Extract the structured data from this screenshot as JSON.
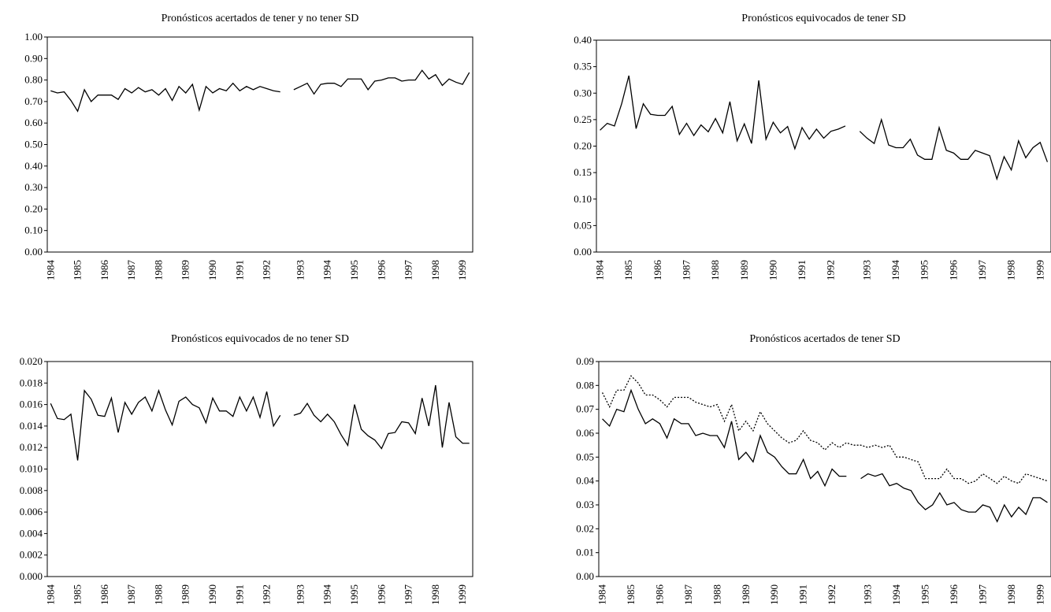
{
  "chart_data": [
    {
      "type": "line",
      "title": "Pronósticos acertados de tener y no tener SD",
      "categories": [
        "1984",
        null,
        null,
        null,
        "1985",
        null,
        null,
        null,
        "1986",
        null,
        null,
        null,
        "1987",
        null,
        null,
        null,
        "1988",
        null,
        null,
        null,
        "1989",
        null,
        null,
        null,
        "1990",
        null,
        null,
        null,
        "1991",
        null,
        null,
        null,
        "1992",
        null,
        null,
        null,
        null,
        "1993",
        null,
        null,
        null,
        "1994",
        null,
        null,
        null,
        "1995",
        null,
        null,
        null,
        "1996",
        null,
        null,
        null,
        "1997",
        null,
        null,
        null,
        "1998",
        null,
        null,
        null,
        "1999",
        null
      ],
      "series": [
        {
          "color": "#000000",
          "style": "solid",
          "values": [
            0.75,
            0.74,
            0.745,
            0.705,
            0.655,
            0.755,
            0.7,
            0.73,
            0.73,
            0.73,
            0.71,
            0.76,
            0.74,
            0.765,
            0.745,
            0.755,
            0.73,
            0.76,
            0.705,
            0.77,
            0.74,
            0.78,
            0.66,
            0.77,
            0.74,
            0.76,
            0.75,
            0.785,
            0.75,
            0.77,
            0.755,
            0.77,
            0.76,
            0.75,
            0.745,
            null,
            0.755,
            0.77,
            0.785,
            0.735,
            0.78,
            0.785,
            0.785,
            0.77,
            0.805,
            0.805,
            0.805,
            0.755,
            0.795,
            0.8,
            0.81,
            0.81,
            0.795,
            0.8,
            0.8,
            0.845,
            0.805,
            0.825,
            0.775,
            0.805,
            0.79,
            0.78,
            0.835
          ]
        }
      ],
      "ylim": [
        0,
        1
      ],
      "yticks": [
        {
          "value": 0,
          "label": "0.00"
        },
        {
          "value": 0.1,
          "label": "0.10"
        },
        {
          "value": 0.2,
          "label": "0.20"
        },
        {
          "value": 0.3,
          "label": "0.30"
        },
        {
          "value": 0.4,
          "label": "0.40"
        },
        {
          "value": 0.5,
          "label": "0.50"
        },
        {
          "value": 0.6,
          "label": "0.60"
        },
        {
          "value": 0.7,
          "label": "0.70"
        },
        {
          "value": 0.8,
          "label": "0.80"
        },
        {
          "value": 0.9,
          "label": "0.90"
        },
        {
          "value": 1,
          "label": "1.00"
        }
      ]
    },
    {
      "type": "line",
      "title": "Pronósticos equivocados de tener SD",
      "categories": [
        "1984",
        null,
        null,
        null,
        "1985",
        null,
        null,
        null,
        "1986",
        null,
        null,
        null,
        "1987",
        null,
        null,
        null,
        "1988",
        null,
        null,
        null,
        "1989",
        null,
        null,
        null,
        "1990",
        null,
        null,
        null,
        "1991",
        null,
        null,
        null,
        "1992",
        null,
        null,
        null,
        null,
        "1993",
        null,
        null,
        null,
        "1994",
        null,
        null,
        null,
        "1995",
        null,
        null,
        null,
        "1996",
        null,
        null,
        null,
        "1997",
        null,
        null,
        null,
        "1998",
        null,
        null,
        null,
        "1999",
        null
      ],
      "series": [
        {
          "color": "#000000",
          "style": "solid",
          "values": [
            0.23,
            0.243,
            0.238,
            0.28,
            0.333,
            0.233,
            0.28,
            0.26,
            0.258,
            0.258,
            0.275,
            0.222,
            0.243,
            0.22,
            0.24,
            0.227,
            0.252,
            0.225,
            0.284,
            0.21,
            0.242,
            0.205,
            0.324,
            0.213,
            0.245,
            0.225,
            0.237,
            0.195,
            0.235,
            0.213,
            0.232,
            0.215,
            0.228,
            0.232,
            0.238,
            null,
            0.228,
            0.215,
            0.205,
            0.25,
            0.202,
            0.197,
            0.197,
            0.213,
            0.183,
            0.175,
            0.175,
            0.235,
            0.192,
            0.187,
            0.175,
            0.175,
            0.192,
            0.187,
            0.182,
            0.138,
            0.18,
            0.155,
            0.21,
            0.178,
            0.197,
            0.207,
            0.17
          ]
        }
      ],
      "ylim": [
        0,
        0.4
      ],
      "yticks": [
        {
          "value": 0,
          "label": "0.00"
        },
        {
          "value": 0.05,
          "label": "0.05"
        },
        {
          "value": 0.1,
          "label": "0.10"
        },
        {
          "value": 0.15,
          "label": "0.15"
        },
        {
          "value": 0.2,
          "label": "0.20"
        },
        {
          "value": 0.25,
          "label": "0.25"
        },
        {
          "value": 0.3,
          "label": "0.30"
        },
        {
          "value": 0.35,
          "label": "0.35"
        },
        {
          "value": 0.4,
          "label": "0.40"
        }
      ]
    },
    {
      "type": "line",
      "title": "Pronósticos equivocados de no tener SD",
      "categories": [
        "1984",
        null,
        null,
        null,
        "1985",
        null,
        null,
        null,
        "1986",
        null,
        null,
        null,
        "1987",
        null,
        null,
        null,
        "1988",
        null,
        null,
        null,
        "1989",
        null,
        null,
        null,
        "1990",
        null,
        null,
        null,
        "1991",
        null,
        null,
        null,
        "1992",
        null,
        null,
        null,
        null,
        "1993",
        null,
        null,
        null,
        "1994",
        null,
        null,
        null,
        "1995",
        null,
        null,
        null,
        "1996",
        null,
        null,
        null,
        "1997",
        null,
        null,
        null,
        "1998",
        null,
        null,
        null,
        "1999",
        null
      ],
      "series": [
        {
          "color": "#000000",
          "style": "solid",
          "values": [
            0.0161,
            0.0147,
            0.0146,
            0.0151,
            0.0108,
            0.0173,
            0.0165,
            0.015,
            0.0149,
            0.0166,
            0.0134,
            0.0162,
            0.0151,
            0.0162,
            0.0167,
            0.0154,
            0.0173,
            0.0155,
            0.0141,
            0.0163,
            0.0167,
            0.016,
            0.0157,
            0.0143,
            0.0166,
            0.0154,
            0.0154,
            0.0149,
            0.0167,
            0.0154,
            0.0167,
            0.0148,
            0.0172,
            0.014,
            0.015,
            null,
            0.015,
            0.0152,
            0.0161,
            0.015,
            0.0144,
            0.0151,
            0.0144,
            0.0132,
            0.0122,
            0.016,
            0.0137,
            0.0131,
            0.0127,
            0.0119,
            0.0133,
            0.0134,
            0.0144,
            0.0143,
            0.0133,
            0.0166,
            0.014,
            0.0178,
            0.012,
            0.0162,
            0.013,
            0.0124,
            0.0124
          ]
        }
      ],
      "ylim": [
        0,
        0.02
      ],
      "yticks": [
        {
          "value": 0,
          "label": "0.000"
        },
        {
          "value": 0.002,
          "label": "0.002"
        },
        {
          "value": 0.004,
          "label": "0.004"
        },
        {
          "value": 0.006,
          "label": "0.006"
        },
        {
          "value": 0.008,
          "label": "0.008"
        },
        {
          "value": 0.01,
          "label": "0.010"
        },
        {
          "value": 0.012,
          "label": "0.012"
        },
        {
          "value": 0.014,
          "label": "0.014"
        },
        {
          "value": 0.016,
          "label": "0.016"
        },
        {
          "value": 0.018,
          "label": "0.018"
        },
        {
          "value": 0.02,
          "label": "0.020"
        }
      ]
    },
    {
      "type": "line",
      "title": "Pronósticos acertados de tener SD",
      "categories": [
        "1984",
        null,
        null,
        null,
        "1985",
        null,
        null,
        null,
        "1986",
        null,
        null,
        null,
        "1987",
        null,
        null,
        null,
        "1988",
        null,
        null,
        null,
        "1989",
        null,
        null,
        null,
        "1990",
        null,
        null,
        null,
        "1991",
        null,
        null,
        null,
        "1992",
        null,
        null,
        null,
        null,
        "1993",
        null,
        null,
        null,
        "1994",
        null,
        null,
        null,
        "1995",
        null,
        null,
        null,
        "1996",
        null,
        null,
        null,
        "1997",
        null,
        null,
        null,
        "1998",
        null,
        null,
        null,
        "1999",
        null
      ],
      "series": [
        {
          "color": "#000000",
          "style": "solid",
          "values": [
            0.066,
            0.063,
            0.07,
            0.069,
            0.078,
            0.07,
            0.064,
            0.066,
            0.064,
            0.058,
            0.066,
            0.064,
            0.064,
            0.059,
            0.06,
            0.059,
            0.059,
            0.054,
            0.065,
            0.049,
            0.052,
            0.048,
            0.059,
            0.052,
            0.05,
            0.046,
            0.043,
            0.043,
            0.049,
            0.041,
            0.044,
            0.038,
            0.045,
            0.042,
            0.042,
            null,
            0.041,
            0.043,
            0.042,
            0.043,
            0.038,
            0.039,
            0.037,
            0.036,
            0.031,
            0.028,
            0.03,
            0.035,
            0.03,
            0.031,
            0.028,
            0.027,
            0.027,
            0.03,
            0.029,
            0.023,
            0.03,
            0.025,
            0.029,
            0.026,
            0.033,
            0.033,
            0.031
          ]
        },
        {
          "color": "#000000",
          "style": "dotted",
          "values": [
            0.077,
            0.071,
            0.078,
            0.078,
            0.084,
            0.081,
            0.076,
            0.076,
            0.074,
            0.071,
            0.075,
            0.075,
            0.075,
            0.073,
            0.072,
            0.071,
            0.072,
            0.065,
            0.072,
            0.061,
            0.065,
            0.061,
            0.069,
            0.064,
            0.061,
            0.058,
            0.056,
            0.057,
            0.061,
            0.057,
            0.056,
            0.053,
            0.056,
            0.054,
            0.056,
            0.055,
            0.055,
            0.054,
            0.055,
            0.054,
            0.055,
            0.05,
            0.05,
            0.049,
            0.048,
            0.041,
            0.041,
            0.041,
            0.045,
            0.041,
            0.041,
            0.039,
            0.04,
            0.043,
            0.041,
            0.039,
            0.042,
            0.04,
            0.039,
            0.043,
            0.042,
            0.041,
            0.04
          ]
        }
      ],
      "ylim": [
        0,
        0.09
      ],
      "yticks": [
        {
          "value": 0,
          "label": "0.00"
        },
        {
          "value": 0.01,
          "label": "0.01"
        },
        {
          "value": 0.02,
          "label": "0.02"
        },
        {
          "value": 0.03,
          "label": "0.03"
        },
        {
          "value": 0.04,
          "label": "0.04"
        },
        {
          "value": 0.05,
          "label": "0.05"
        },
        {
          "value": 0.06,
          "label": "0.06"
        },
        {
          "value": 0.07,
          "label": "0.07"
        },
        {
          "value": 0.08,
          "label": "0.08"
        },
        {
          "value": 0.09,
          "label": "0.09"
        }
      ]
    }
  ]
}
